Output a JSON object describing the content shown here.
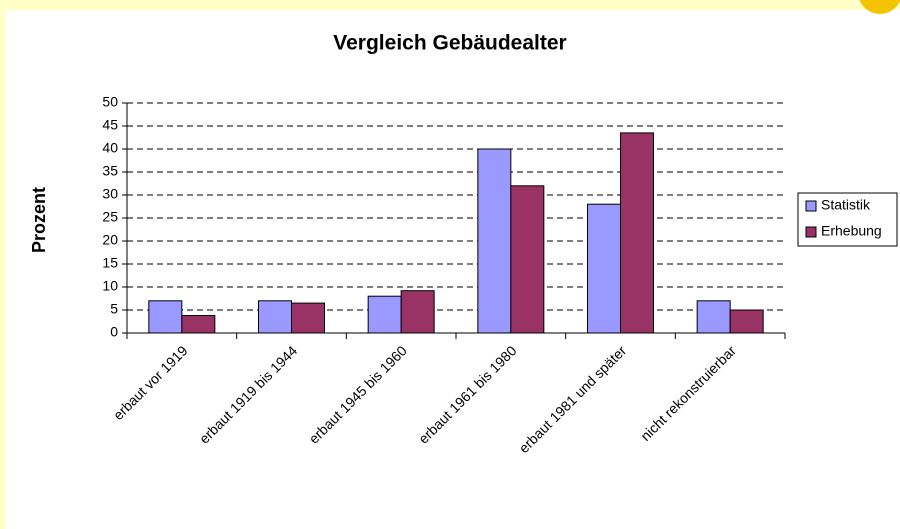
{
  "chart_data": {
    "type": "bar",
    "title": "Vergleich Gebäudealter",
    "ylabel": "Prozent",
    "categories": [
      "erbaut vor 1919",
      "erbaut 1919 bis 1944",
      "erbaut 1945 bis 1960",
      "erbaut 1961 bis 1980",
      "erbaut 1981 und später",
      "nicht rekonstruierbar"
    ],
    "series": [
      {
        "name": "Statistik",
        "color": "#9999ff",
        "values": [
          7,
          7,
          8,
          40,
          28,
          7
        ]
      },
      {
        "name": "Erhebung",
        "color": "#993366",
        "values": [
          3.8,
          6.5,
          9.2,
          32,
          43.5,
          5
        ]
      }
    ],
    "ylim": [
      0,
      50
    ],
    "yticks": [
      0,
      5,
      10,
      15,
      20,
      25,
      30,
      35,
      40,
      45,
      50
    ],
    "grid": true,
    "legend": "right"
  }
}
